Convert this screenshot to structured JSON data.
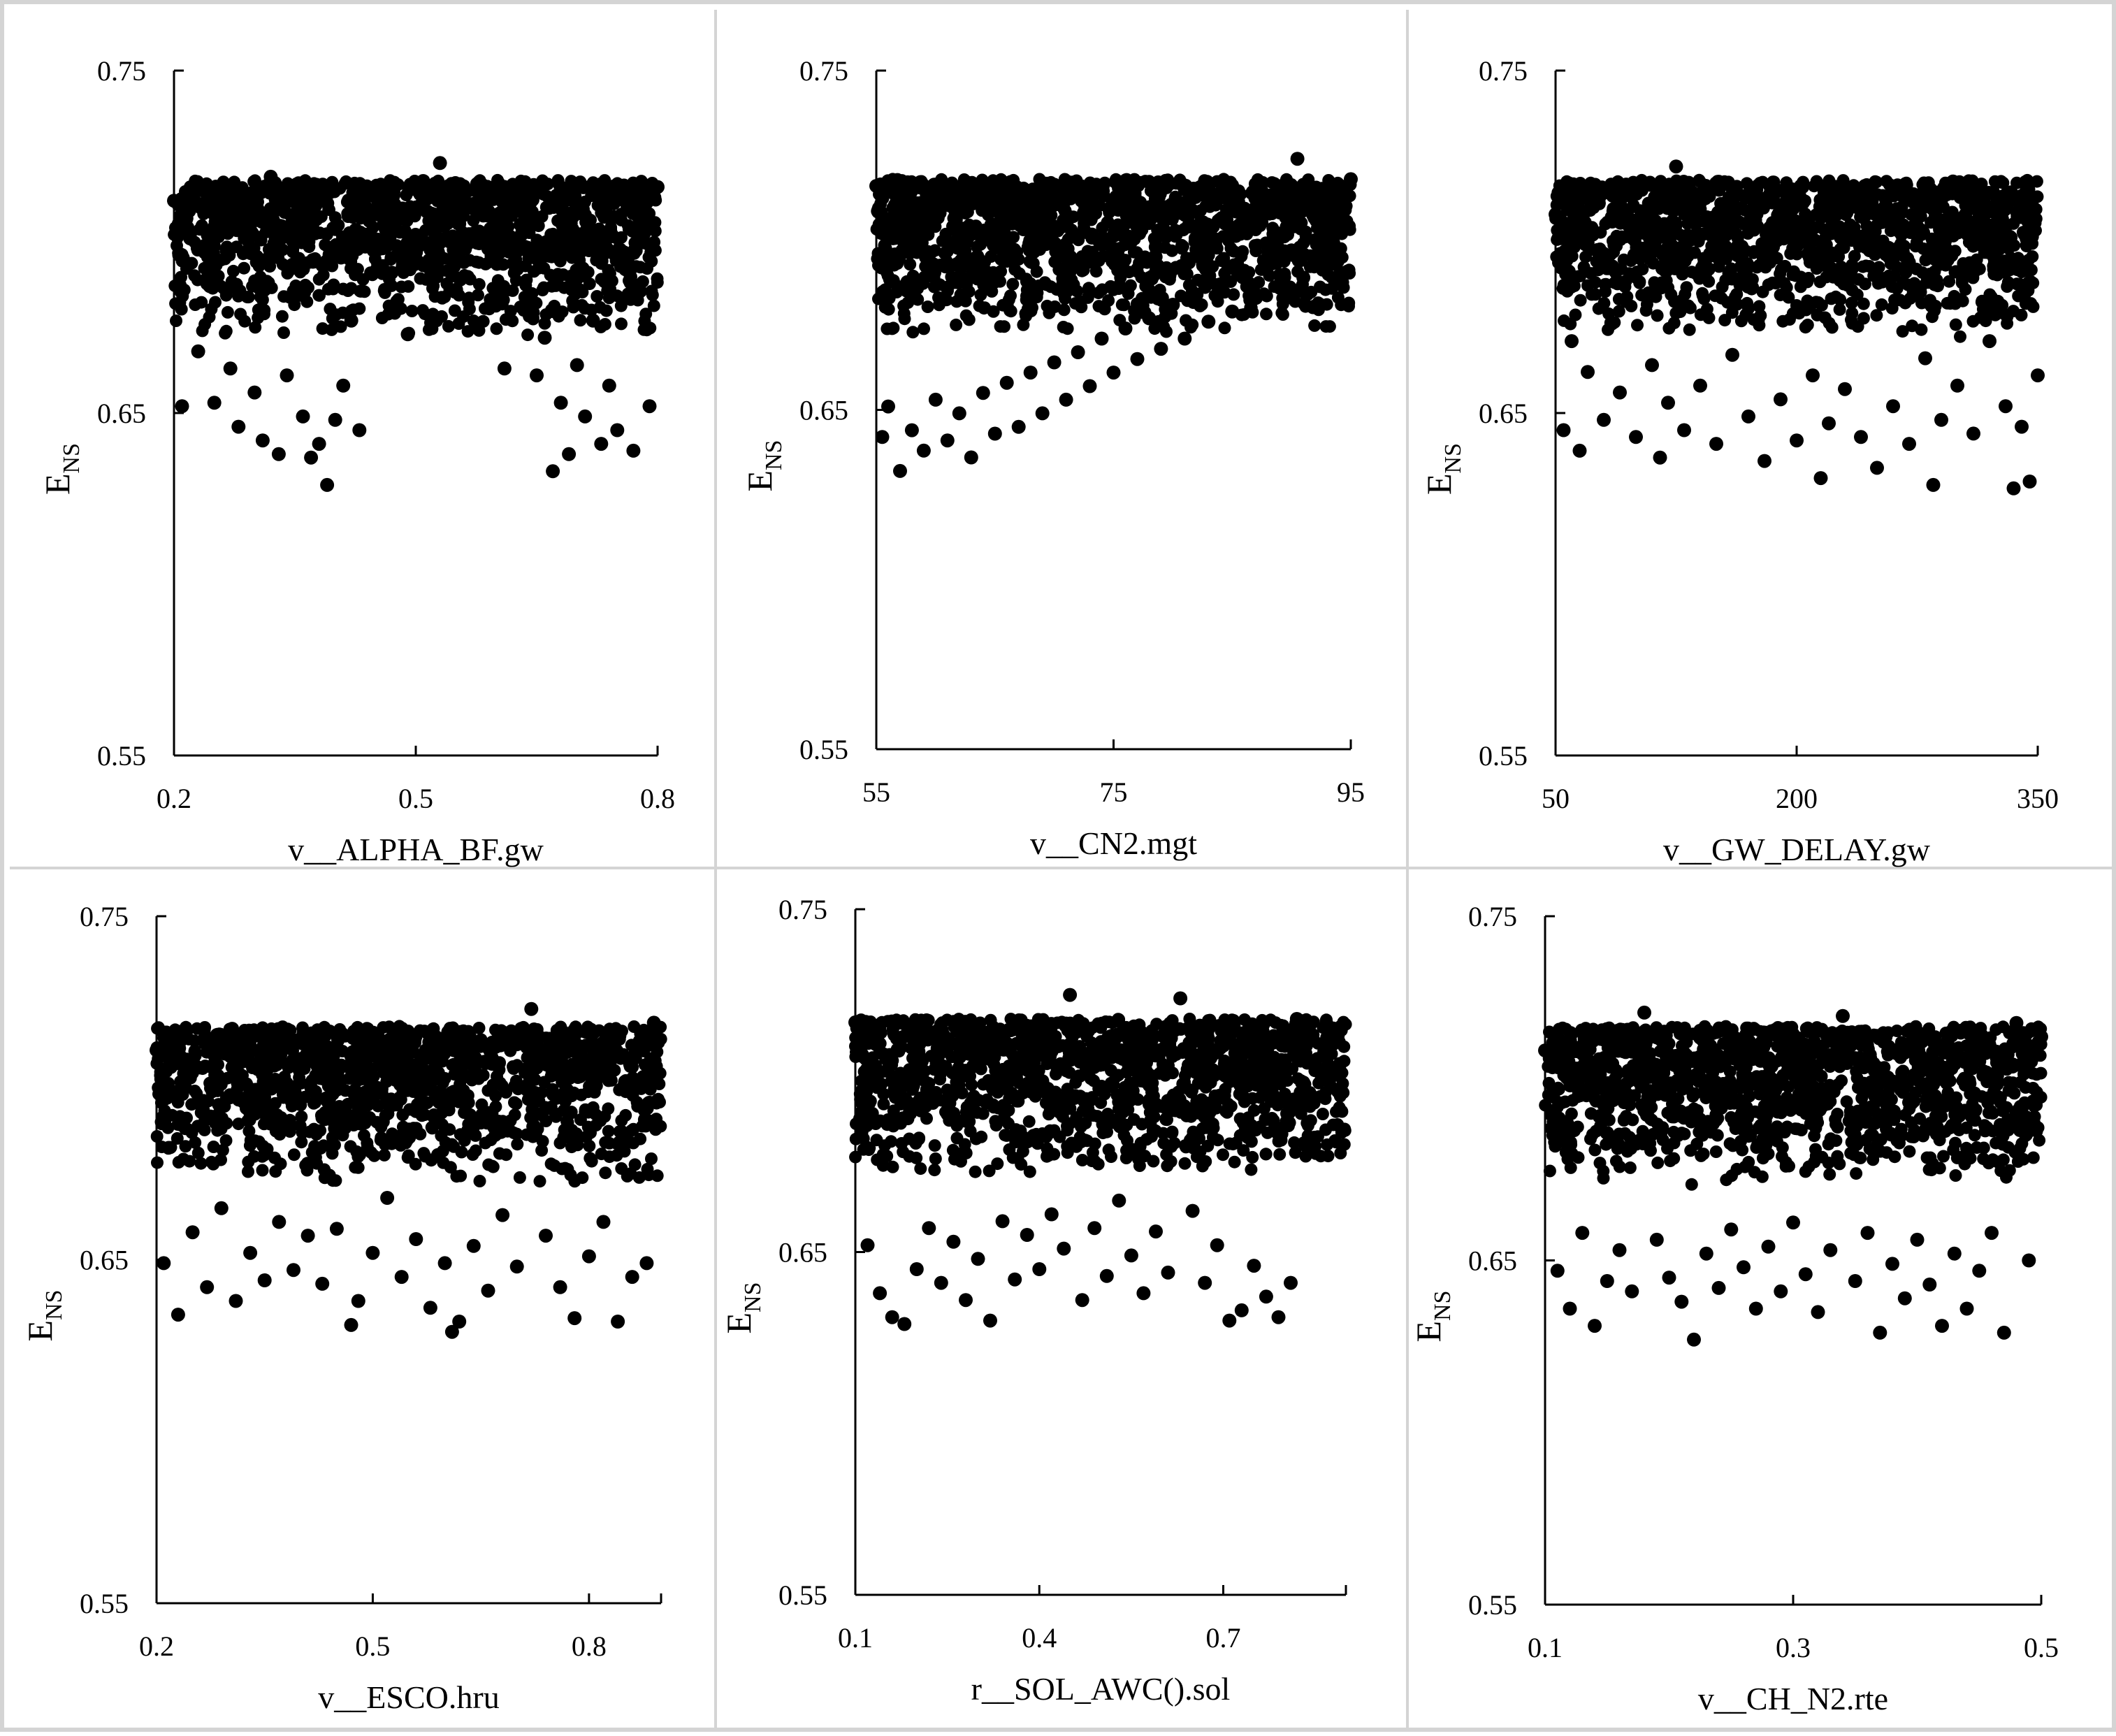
{
  "chart_data": [
    {
      "type": "scatter",
      "xlabel": "v__ALPHA_BF.gw",
      "ylabel": "E",
      "ylabel_sub": "NS",
      "xticks": [
        "0.2",
        "0.5",
        "0.8"
      ],
      "xtick_values": [
        0.2,
        0.5,
        0.8
      ],
      "yticks": [
        "0.75",
        "0.65",
        "0.55"
      ],
      "ytick_values": [
        0.75,
        0.65,
        0.55
      ],
      "xlim": [
        0.2,
        0.8
      ],
      "ylim": [
        0.55,
        0.75
      ],
      "grid": false,
      "series_color": "#000000",
      "points": [
        [
          0.2,
          0.712
        ],
        [
          0.21,
          0.652
        ],
        [
          0.22,
          0.701
        ],
        [
          0.23,
          0.668
        ],
        [
          0.24,
          0.689
        ],
        [
          0.25,
          0.653
        ],
        [
          0.26,
          0.716
        ],
        [
          0.27,
          0.663
        ],
        [
          0.28,
          0.646
        ],
        [
          0.29,
          0.704
        ],
        [
          0.3,
          0.656
        ],
        [
          0.31,
          0.642
        ],
        [
          0.32,
          0.719
        ],
        [
          0.33,
          0.638
        ],
        [
          0.34,
          0.661
        ],
        [
          0.35,
          0.684
        ],
        [
          0.36,
          0.649
        ],
        [
          0.37,
          0.637
        ],
        [
          0.38,
          0.641
        ],
        [
          0.39,
          0.629
        ],
        [
          0.4,
          0.648
        ],
        [
          0.41,
          0.658
        ],
        [
          0.42,
          0.677
        ],
        [
          0.43,
          0.645
        ],
        [
          0.45,
          0.708
        ],
        [
          0.47,
          0.691
        ],
        [
          0.49,
          0.673
        ],
        [
          0.5,
          0.717
        ],
        [
          0.52,
          0.695
        ],
        [
          0.53,
          0.723
        ],
        [
          0.55,
          0.686
        ],
        [
          0.57,
          0.711
        ],
        [
          0.59,
          0.698
        ],
        [
          0.61,
          0.663
        ],
        [
          0.63,
          0.705
        ],
        [
          0.65,
          0.661
        ],
        [
          0.66,
          0.672
        ],
        [
          0.67,
          0.633
        ],
        [
          0.68,
          0.653
        ],
        [
          0.69,
          0.638
        ],
        [
          0.7,
          0.664
        ],
        [
          0.71,
          0.649
        ],
        [
          0.72,
          0.677
        ],
        [
          0.73,
          0.641
        ],
        [
          0.74,
          0.658
        ],
        [
          0.75,
          0.645
        ],
        [
          0.76,
          0.692
        ],
        [
          0.77,
          0.639
        ],
        [
          0.78,
          0.706
        ],
        [
          0.79,
          0.652
        ],
        [
          0.8,
          0.716
        ]
      ]
    },
    {
      "type": "scatter",
      "xlabel": "v__CN2.mgt",
      "ylabel": "E",
      "ylabel_sub": "NS",
      "xticks": [
        "55",
        "75",
        "95"
      ],
      "xtick_values": [
        55,
        75,
        95
      ],
      "yticks": [
        "0.75",
        "0.65",
        "0.55"
      ],
      "ytick_values": [
        0.75,
        0.65,
        0.55
      ],
      "xlim": [
        55,
        95
      ],
      "ylim": [
        0.55,
        0.75
      ],
      "grid": false,
      "series_color": "#000000",
      "points": [
        [
          55,
          0.716
        ],
        [
          55.5,
          0.642
        ],
        [
          56,
          0.651
        ],
        [
          57,
          0.632
        ],
        [
          58,
          0.644
        ],
        [
          59,
          0.638
        ],
        [
          60,
          0.653
        ],
        [
          61,
          0.641
        ],
        [
          62,
          0.649
        ],
        [
          63,
          0.636
        ],
        [
          64,
          0.655
        ],
        [
          65,
          0.643
        ],
        [
          66,
          0.658
        ],
        [
          67,
          0.645
        ],
        [
          68,
          0.661
        ],
        [
          69,
          0.649
        ],
        [
          70,
          0.664
        ],
        [
          71,
          0.653
        ],
        [
          72,
          0.667
        ],
        [
          73,
          0.657
        ],
        [
          74,
          0.671
        ],
        [
          75,
          0.661
        ],
        [
          76,
          0.674
        ],
        [
          77,
          0.665
        ],
        [
          78,
          0.677
        ],
        [
          79,
          0.668
        ],
        [
          80,
          0.681
        ],
        [
          81,
          0.671
        ],
        [
          82,
          0.684
        ],
        [
          83,
          0.676
        ],
        [
          84,
          0.687
        ],
        [
          85,
          0.679
        ],
        [
          86,
          0.691
        ],
        [
          87,
          0.683
        ],
        [
          88,
          0.694
        ],
        [
          89,
          0.686
        ],
        [
          90,
          0.697
        ],
        [
          90.5,
          0.724
        ],
        [
          91,
          0.689
        ],
        [
          92,
          0.7
        ],
        [
          93,
          0.692
        ],
        [
          94,
          0.703
        ],
        [
          95,
          0.718
        ]
      ]
    },
    {
      "type": "scatter",
      "xlabel": "v__GW_DELAY.gw",
      "ylabel": "E",
      "ylabel_sub": "NS",
      "xticks": [
        "50",
        "200",
        "350"
      ],
      "xtick_values": [
        50,
        200,
        350
      ],
      "yticks": [
        "0.75",
        "0.65",
        "0.55"
      ],
      "ytick_values": [
        0.75,
        0.65,
        0.55
      ],
      "xlim": [
        50,
        350
      ],
      "ylim": [
        0.55,
        0.75
      ],
      "grid": false,
      "series_color": "#000000",
      "points": [
        [
          50,
          0.708
        ],
        [
          55,
          0.645
        ],
        [
          60,
          0.671
        ],
        [
          65,
          0.639
        ],
        [
          70,
          0.662
        ],
        [
          80,
          0.648
        ],
        [
          90,
          0.656
        ],
        [
          100,
          0.643
        ],
        [
          110,
          0.664
        ],
        [
          115,
          0.637
        ],
        [
          120,
          0.653
        ],
        [
          125,
          0.722
        ],
        [
          130,
          0.645
        ],
        [
          140,
          0.658
        ],
        [
          150,
          0.641
        ],
        [
          160,
          0.667
        ],
        [
          170,
          0.649
        ],
        [
          180,
          0.636
        ],
        [
          190,
          0.654
        ],
        [
          200,
          0.642
        ],
        [
          210,
          0.661
        ],
        [
          215,
          0.631
        ],
        [
          220,
          0.647
        ],
        [
          230,
          0.657
        ],
        [
          240,
          0.643
        ],
        [
          250,
          0.634
        ],
        [
          260,
          0.652
        ],
        [
          270,
          0.641
        ],
        [
          280,
          0.666
        ],
        [
          285,
          0.629
        ],
        [
          290,
          0.648
        ],
        [
          300,
          0.658
        ],
        [
          310,
          0.644
        ],
        [
          320,
          0.671
        ],
        [
          330,
          0.652
        ],
        [
          335,
          0.628
        ],
        [
          340,
          0.646
        ],
        [
          345,
          0.63
        ],
        [
          350,
          0.661
        ]
      ]
    },
    {
      "type": "scatter",
      "xlabel": "v__ESCO.hru",
      "ylabel": "E",
      "ylabel_sub": "NS",
      "xticks": [
        "0.2",
        "0.5",
        "0.8"
      ],
      "xtick_values": [
        0.2,
        0.5,
        0.8
      ],
      "yticks": [
        "0.75",
        "0.65",
        "0.55"
      ],
      "ytick_values": [
        0.75,
        0.65,
        0.55
      ],
      "xlim": [
        0.2,
        0.9
      ],
      "ylim": [
        0.55,
        0.75
      ],
      "grid": false,
      "series_color": "#000000",
      "points": [
        [
          0.2,
          0.711
        ],
        [
          0.21,
          0.649
        ],
        [
          0.23,
          0.634
        ],
        [
          0.25,
          0.658
        ],
        [
          0.27,
          0.642
        ],
        [
          0.29,
          0.665
        ],
        [
          0.31,
          0.638
        ],
        [
          0.33,
          0.652
        ],
        [
          0.35,
          0.644
        ],
        [
          0.37,
          0.661
        ],
        [
          0.39,
          0.647
        ],
        [
          0.41,
          0.657
        ],
        [
          0.43,
          0.643
        ],
        [
          0.45,
          0.659
        ],
        [
          0.47,
          0.631
        ],
        [
          0.48,
          0.638
        ],
        [
          0.5,
          0.652
        ],
        [
          0.52,
          0.668
        ],
        [
          0.54,
          0.645
        ],
        [
          0.56,
          0.656
        ],
        [
          0.58,
          0.636
        ],
        [
          0.6,
          0.649
        ],
        [
          0.61,
          0.629
        ],
        [
          0.62,
          0.632
        ],
        [
          0.64,
          0.654
        ],
        [
          0.66,
          0.641
        ],
        [
          0.68,
          0.663
        ],
        [
          0.7,
          0.648
        ],
        [
          0.72,
          0.723
        ],
        [
          0.74,
          0.657
        ],
        [
          0.76,
          0.642
        ],
        [
          0.78,
          0.633
        ],
        [
          0.8,
          0.651
        ],
        [
          0.82,
          0.661
        ],
        [
          0.84,
          0.632
        ],
        [
          0.86,
          0.645
        ],
        [
          0.88,
          0.649
        ],
        [
          0.89,
          0.719
        ]
      ]
    },
    {
      "type": "scatter",
      "xlabel": "r__SOL_AWC().sol",
      "ylabel": "E",
      "ylabel_sub": "NS",
      "xticks": [
        "0.1",
        "0.4",
        "0.7"
      ],
      "xtick_values": [
        0.1,
        0.4,
        0.7
      ],
      "yticks": [
        "0.75",
        "0.65",
        "0.55"
      ],
      "ytick_values": [
        0.75,
        0.65,
        0.55
      ],
      "xlim": [
        0.1,
        0.9
      ],
      "ylim": [
        0.55,
        0.75
      ],
      "grid": false,
      "series_color": "#000000",
      "points": [
        [
          0.1,
          0.717
        ],
        [
          0.12,
          0.652
        ],
        [
          0.14,
          0.638
        ],
        [
          0.16,
          0.631
        ],
        [
          0.18,
          0.629
        ],
        [
          0.2,
          0.645
        ],
        [
          0.22,
          0.657
        ],
        [
          0.24,
          0.641
        ],
        [
          0.26,
          0.653
        ],
        [
          0.28,
          0.636
        ],
        [
          0.3,
          0.648
        ],
        [
          0.32,
          0.63
        ],
        [
          0.34,
          0.659
        ],
        [
          0.36,
          0.642
        ],
        [
          0.38,
          0.655
        ],
        [
          0.4,
          0.645
        ],
        [
          0.42,
          0.661
        ],
        [
          0.44,
          0.651
        ],
        [
          0.45,
          0.725
        ],
        [
          0.47,
          0.636
        ],
        [
          0.49,
          0.657
        ],
        [
          0.51,
          0.643
        ],
        [
          0.53,
          0.665
        ],
        [
          0.55,
          0.649
        ],
        [
          0.57,
          0.638
        ],
        [
          0.59,
          0.656
        ],
        [
          0.61,
          0.644
        ],
        [
          0.63,
          0.724
        ],
        [
          0.65,
          0.662
        ],
        [
          0.67,
          0.641
        ],
        [
          0.69,
          0.652
        ],
        [
          0.71,
          0.63
        ],
        [
          0.73,
          0.633
        ],
        [
          0.75,
          0.646
        ],
        [
          0.77,
          0.637
        ],
        [
          0.79,
          0.631
        ],
        [
          0.81,
          0.641
        ],
        [
          0.82,
          0.718
        ]
      ]
    },
    {
      "type": "scatter",
      "xlabel": "v__CH_N2.rte",
      "ylabel": "E",
      "ylabel_sub": "NS",
      "xticks": [
        "0.1",
        "0.3",
        "0.5"
      ],
      "xtick_values": [
        0.1,
        0.3,
        0.5
      ],
      "yticks": [
        "0.75",
        "0.65",
        "0.55"
      ],
      "ytick_values": [
        0.75,
        0.65,
        0.55
      ],
      "xlim": [
        0.1,
        0.5
      ],
      "ylim": [
        0.55,
        0.75
      ],
      "grid": false,
      "series_color": "#000000",
      "points": [
        [
          0.1,
          0.711
        ],
        [
          0.11,
          0.647
        ],
        [
          0.12,
          0.636
        ],
        [
          0.13,
          0.658
        ],
        [
          0.14,
          0.631
        ],
        [
          0.15,
          0.644
        ],
        [
          0.16,
          0.653
        ],
        [
          0.17,
          0.641
        ],
        [
          0.18,
          0.722
        ],
        [
          0.19,
          0.656
        ],
        [
          0.2,
          0.645
        ],
        [
          0.21,
          0.638
        ],
        [
          0.22,
          0.627
        ],
        [
          0.23,
          0.652
        ],
        [
          0.24,
          0.642
        ],
        [
          0.25,
          0.659
        ],
        [
          0.26,
          0.648
        ],
        [
          0.27,
          0.636
        ],
        [
          0.28,
          0.654
        ],
        [
          0.29,
          0.641
        ],
        [
          0.3,
          0.661
        ],
        [
          0.31,
          0.646
        ],
        [
          0.32,
          0.635
        ],
        [
          0.33,
          0.653
        ],
        [
          0.34,
          0.721
        ],
        [
          0.35,
          0.644
        ],
        [
          0.36,
          0.658
        ],
        [
          0.37,
          0.629
        ],
        [
          0.38,
          0.649
        ],
        [
          0.39,
          0.639
        ],
        [
          0.4,
          0.656
        ],
        [
          0.41,
          0.643
        ],
        [
          0.42,
          0.631
        ],
        [
          0.43,
          0.652
        ],
        [
          0.44,
          0.636
        ],
        [
          0.45,
          0.647
        ],
        [
          0.46,
          0.658
        ],
        [
          0.47,
          0.629
        ],
        [
          0.48,
          0.719
        ],
        [
          0.49,
          0.65
        ],
        [
          0.5,
          0.715
        ]
      ]
    }
  ]
}
